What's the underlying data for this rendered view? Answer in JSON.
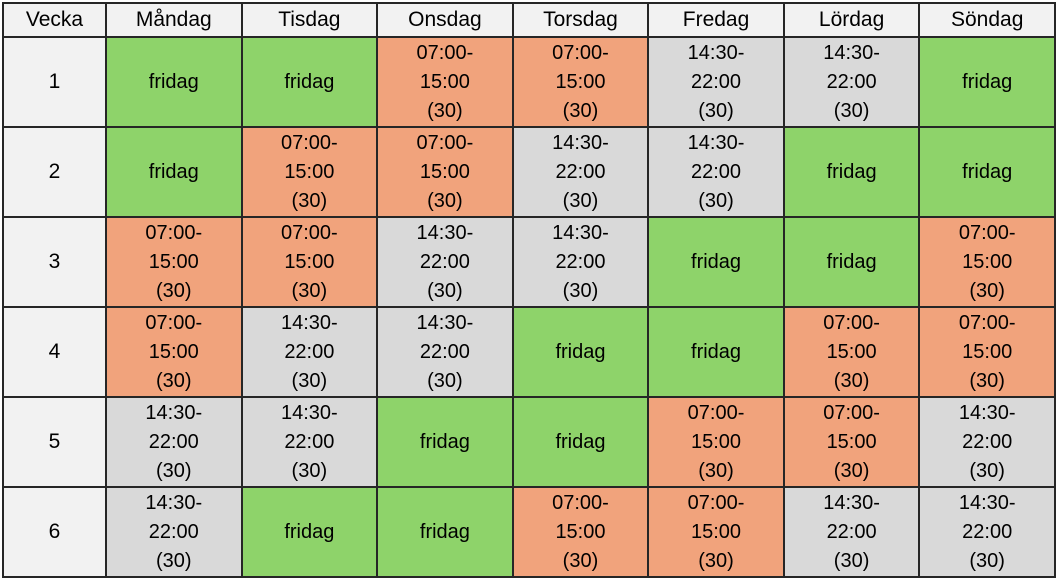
{
  "colors": {
    "off": "#8ed36a",
    "morning": "#f1a37c",
    "evening": "#d9d9d9",
    "header_bg": "#f2f2f2",
    "border": "#262626"
  },
  "table": {
    "headers": [
      "Vecka",
      "Måndag",
      "Tisdag",
      "Onsdag",
      "Torsdag",
      "Fredag",
      "Lördag",
      "Söndag"
    ],
    "shift_types": [
      "off",
      "morning",
      "evening"
    ],
    "rows": [
      {
        "week": "1",
        "cells": [
          {
            "type": "off",
            "text": "fridag"
          },
          {
            "type": "off",
            "text": "fridag"
          },
          {
            "type": "morning",
            "text": "07:00-15:00 (30)"
          },
          {
            "type": "morning",
            "text": "07:00-15:00 (30)"
          },
          {
            "type": "evening",
            "text": "14:30-22:00 (30)"
          },
          {
            "type": "evening",
            "text": "14:30-22:00 (30)"
          },
          {
            "type": "off",
            "text": "fridag"
          }
        ]
      },
      {
        "week": "2",
        "cells": [
          {
            "type": "off",
            "text": "fridag"
          },
          {
            "type": "morning",
            "text": "07:00-15:00 (30)"
          },
          {
            "type": "morning",
            "text": "07:00-15:00 (30)"
          },
          {
            "type": "evening",
            "text": "14:30-22:00 (30)"
          },
          {
            "type": "evening",
            "text": "14:30-22:00 (30)"
          },
          {
            "type": "off",
            "text": "fridag"
          },
          {
            "type": "off",
            "text": "fridag"
          }
        ]
      },
      {
        "week": "3",
        "cells": [
          {
            "type": "morning",
            "text": "07:00-15:00 (30)"
          },
          {
            "type": "morning",
            "text": "07:00-15:00 (30)"
          },
          {
            "type": "evening",
            "text": "14:30-22:00 (30)"
          },
          {
            "type": "evening",
            "text": "14:30-22:00 (30)"
          },
          {
            "type": "off",
            "text": "fridag"
          },
          {
            "type": "off",
            "text": "fridag"
          },
          {
            "type": "morning",
            "text": "07:00-15:00 (30)"
          }
        ]
      },
      {
        "week": "4",
        "cells": [
          {
            "type": "morning",
            "text": "07:00-15:00 (30)"
          },
          {
            "type": "evening",
            "text": "14:30-22:00 (30)"
          },
          {
            "type": "evening",
            "text": "14:30-22:00 (30)"
          },
          {
            "type": "off",
            "text": "fridag"
          },
          {
            "type": "off",
            "text": "fridag"
          },
          {
            "type": "morning",
            "text": "07:00-15:00 (30)"
          },
          {
            "type": "morning",
            "text": "07:00-15:00 (30)"
          }
        ]
      },
      {
        "week": "5",
        "cells": [
          {
            "type": "evening",
            "text": "14:30-22:00 (30)"
          },
          {
            "type": "evening",
            "text": "14:30-22:00 (30)"
          },
          {
            "type": "off",
            "text": "fridag"
          },
          {
            "type": "off",
            "text": "fridag"
          },
          {
            "type": "morning",
            "text": "07:00-15:00 (30)"
          },
          {
            "type": "morning",
            "text": "07:00-15:00 (30)"
          },
          {
            "type": "evening",
            "text": "14:30-22:00 (30)"
          }
        ]
      },
      {
        "week": "6",
        "cells": [
          {
            "type": "evening",
            "text": "14:30-22:00 (30)"
          },
          {
            "type": "off",
            "text": "fridag"
          },
          {
            "type": "off",
            "text": "fridag"
          },
          {
            "type": "morning",
            "text": "07:00-15:00 (30)"
          },
          {
            "type": "morning",
            "text": "07:00-15:00 (30)"
          },
          {
            "type": "evening",
            "text": "14:30-22:00 (30)"
          },
          {
            "type": "evening",
            "text": "14:30-22:00 (30)"
          }
        ]
      }
    ]
  }
}
